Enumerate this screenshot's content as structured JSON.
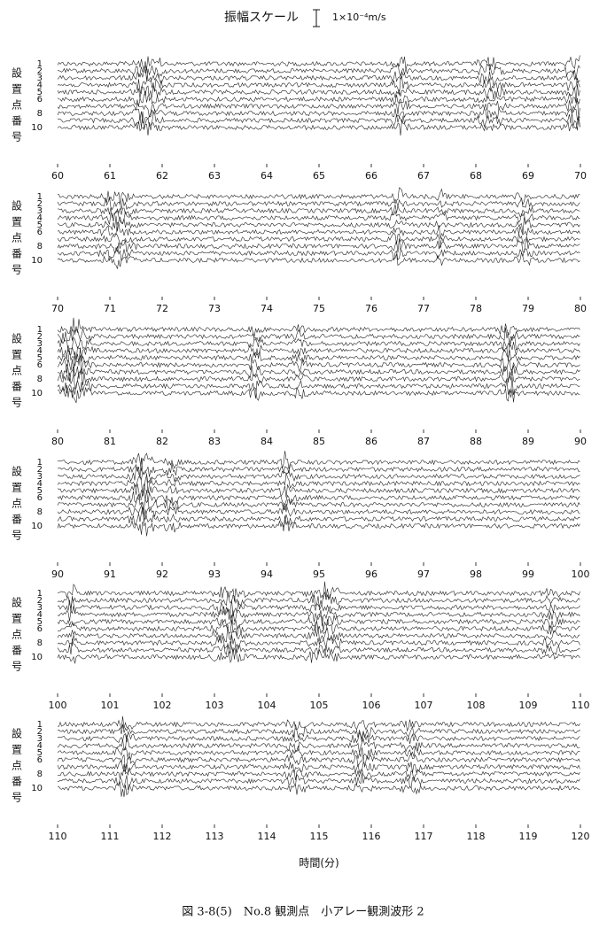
{
  "scale": {
    "label": "振幅スケール",
    "value": "1×10⁻⁴m/s"
  },
  "caption": "図 3-8(5)　No.8 観測点　小アレー観測波形 2",
  "chart_data": [
    {
      "type": "waveform",
      "ylabel": "設置点番号",
      "categories": [
        "1",
        "2",
        "3",
        "4",
        "5",
        "6",
        null,
        "8",
        null,
        "10"
      ],
      "xlim": [
        60,
        70
      ],
      "xticks": [
        60,
        61,
        62,
        63,
        64,
        65,
        66,
        67,
        68,
        69,
        70
      ]
    },
    {
      "type": "waveform",
      "ylabel": "設置点番号",
      "categories": [
        "1",
        "2",
        "3",
        "4",
        "5",
        "6",
        null,
        "8",
        null,
        "10"
      ],
      "xlim": [
        70,
        80
      ],
      "xticks": [
        70,
        71,
        72,
        73,
        74,
        75,
        76,
        77,
        78,
        79,
        80
      ]
    },
    {
      "type": "waveform",
      "ylabel": "設置点番号",
      "categories": [
        "1",
        "2",
        "3",
        "4",
        "5",
        "6",
        null,
        "8",
        null,
        "10"
      ],
      "xlim": [
        80,
        90
      ],
      "xticks": [
        80,
        81,
        82,
        83,
        84,
        85,
        86,
        87,
        88,
        89,
        90
      ]
    },
    {
      "type": "waveform",
      "ylabel": "設置点番号",
      "categories": [
        "1",
        "2",
        "3",
        "4",
        "5",
        "6",
        null,
        "8",
        null,
        "10"
      ],
      "xlim": [
        90,
        100
      ],
      "xticks": [
        90,
        91,
        92,
        93,
        94,
        95,
        96,
        97,
        98,
        99,
        100
      ]
    },
    {
      "type": "waveform",
      "ylabel": "設置点番号",
      "categories": [
        "1",
        "2",
        "3",
        "4",
        "5",
        "6",
        null,
        "8",
        null,
        "10"
      ],
      "xlim": [
        100,
        110
      ],
      "xticks": [
        100,
        101,
        102,
        103,
        104,
        105,
        106,
        107,
        108,
        109,
        110
      ]
    },
    {
      "type": "waveform",
      "ylabel": "設置点番号",
      "categories": [
        "1",
        "2",
        "3",
        "4",
        "5",
        "6",
        null,
        "8",
        null,
        "10"
      ],
      "xlim": [
        110,
        120
      ],
      "xticks": [
        110,
        111,
        112,
        113,
        114,
        115,
        116,
        117,
        118,
        119,
        120
      ],
      "xlabel": "時間(分)"
    }
  ]
}
